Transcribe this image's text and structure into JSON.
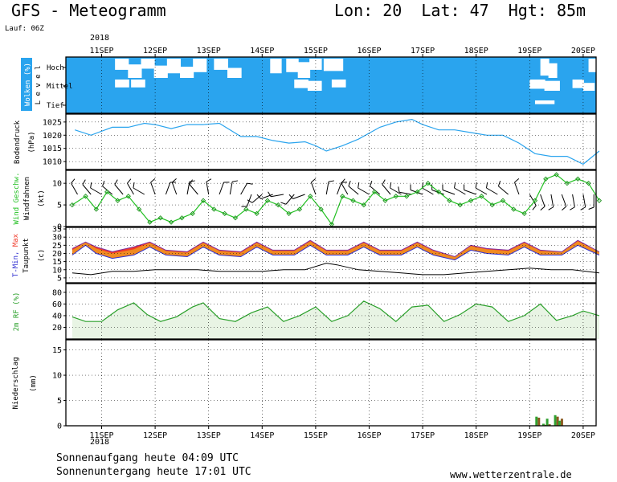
{
  "header": {
    "title": "GFS - Meteogramm",
    "location": "Lon: 20  Lat: 47  Hgt: 85m",
    "run": "Lauf: 06Z"
  },
  "footer": {
    "sunrise": "Sonnenaufgang heute 04:09 UTC",
    "sunset": "Sonnenuntergang heute 17:01 UTC",
    "site": "www.wetterzentrale.de"
  },
  "year_label": "2018",
  "x_ticks": [
    "11SEP",
    "12SEP",
    "13SEP",
    "14SEP",
    "15SEP",
    "16SEP",
    "17SEP",
    "18SEP",
    "19SEP",
    "20SEP"
  ],
  "colors": {
    "cloud_sky": "#2aa4ee",
    "cloud": "#ffffff",
    "pressure": "#2aa4ee",
    "wind": "#22c022",
    "wind_marker": "#1a901a",
    "barb": "#000000",
    "tmax_fill": "#f03a2a",
    "tmin_fill": "#f08a20",
    "tmin_line": "#3030d0",
    "dew": "#000000",
    "rh_line": "#2aa02a",
    "rh_fill": "#e8f4e4",
    "precip_green": "#30a030",
    "precip_brown": "#8a5a20",
    "grid": "#000000"
  },
  "panels": {
    "clouds": {
      "label": "Wolken (%)",
      "level_label": "L e v e l",
      "levels": [
        "Hoch",
        "Mittel",
        "Tief"
      ]
    },
    "pressure": {
      "label": "Bodendruck",
      "unit": "(hPa)",
      "ticks": [
        1025,
        1020,
        1015,
        1010
      ]
    },
    "wind": {
      "label": "Wind Geschw.",
      "label2": "Windfahnen",
      "unit": "(kt)",
      "ticks": [
        10,
        5,
        0
      ]
    },
    "temp": {
      "label_a": "T-Min,",
      "label_b": "Max",
      "label2": "Taupunkt",
      "unit": "(c)",
      "ticks": [
        35,
        30,
        25,
        20,
        15,
        10,
        5
      ]
    },
    "rh": {
      "label": "2m RF (%)",
      "ticks": [
        80,
        60,
        40,
        20
      ]
    },
    "precip": {
      "label": "Niederschlag",
      "unit": "(mm)",
      "ticks": [
        15,
        10,
        5,
        0
      ]
    }
  },
  "chart_data": {
    "type": "line",
    "x_unit": "days from 11SEP 00Z",
    "pressure": {
      "x": [
        -0.5,
        -0.2,
        0.2,
        0.5,
        0.8,
        1.0,
        1.3,
        1.6,
        1.9,
        2.2,
        2.6,
        2.9,
        3.2,
        3.5,
        3.8,
        4.0,
        4.2,
        4.5,
        4.8,
        5.2,
        5.5,
        5.8,
        6.0,
        6.3,
        6.6,
        6.9,
        7.2,
        7.5,
        7.8,
        8.1,
        8.4,
        8.7,
        9.0,
        9.3
      ],
      "y": [
        1022,
        1020,
        1023,
        1023,
        1024.5,
        1024,
        1022.5,
        1024,
        1024,
        1024.5,
        1019.5,
        1019.5,
        1018,
        1017,
        1017.5,
        1016,
        1014,
        1016,
        1018.5,
        1023,
        1025,
        1026,
        1024,
        1022,
        1022,
        1021,
        1020,
        1020,
        1017,
        1013,
        1012,
        1012,
        1009,
        1014
      ]
    },
    "wind_speed": {
      "x": [
        -0.55,
        -0.3,
        -0.1,
        0.1,
        0.3,
        0.5,
        0.7,
        0.9,
        1.1,
        1.3,
        1.5,
        1.7,
        1.9,
        2.1,
        2.3,
        2.5,
        2.7,
        2.9,
        3.1,
        3.3,
        3.5,
        3.7,
        3.9,
        4.1,
        4.3,
        4.5,
        4.7,
        4.9,
        5.1,
        5.3,
        5.5,
        5.7,
        5.9,
        6.1,
        6.3,
        6.5,
        6.7,
        6.9,
        7.1,
        7.3,
        7.5,
        7.7,
        7.9,
        8.1,
        8.3,
        8.5,
        8.7,
        8.9,
        9.1,
        9.3
      ],
      "y": [
        5,
        7,
        4,
        8,
        6,
        7,
        4,
        1,
        2,
        1,
        2,
        3,
        6,
        4,
        3,
        2,
        4,
        3,
        6,
        5,
        3,
        4,
        7,
        4,
        0.5,
        7,
        6,
        5,
        8,
        6,
        7,
        7,
        8,
        10,
        8,
        6,
        5,
        6,
        7,
        5,
        6,
        4,
        3,
        6,
        11,
        12,
        10,
        11,
        10,
        6
      ]
    },
    "t_max": {
      "x": [
        -0.55,
        -0.3,
        -0.1,
        0.2,
        0.6,
        0.9,
        1.2,
        1.6,
        1.9,
        2.2,
        2.6,
        2.9,
        3.2,
        3.6,
        3.9,
        4.2,
        4.6,
        4.9,
        5.2,
        5.6,
        5.9,
        6.2,
        6.6,
        6.9,
        7.2,
        7.6,
        7.9,
        8.2,
        8.6,
        8.9,
        9.3
      ],
      "y": [
        23,
        27,
        24,
        21,
        24,
        27,
        22,
        21,
        27,
        22,
        21,
        27,
        22,
        22,
        28,
        22,
        22,
        27,
        22,
        22,
        27,
        22,
        18,
        25,
        23,
        22,
        27,
        22,
        21,
        28,
        21
      ]
    },
    "t_min": {
      "x": [
        -0.55,
        -0.3,
        -0.1,
        0.2,
        0.6,
        0.9,
        1.2,
        1.6,
        1.9,
        2.2,
        2.6,
        2.9,
        3.2,
        3.6,
        3.9,
        4.2,
        4.6,
        4.9,
        5.2,
        5.6,
        5.9,
        6.2,
        6.6,
        6.9,
        7.2,
        7.6,
        7.9,
        8.2,
        8.6,
        8.9,
        9.3
      ],
      "y": [
        19,
        25,
        20,
        17,
        19,
        24,
        19,
        18,
        24,
        19,
        18,
        24,
        19,
        19,
        25,
        19,
        19,
        24,
        19,
        19,
        24,
        19,
        16,
        22,
        20,
        19,
        24,
        19,
        19,
        25,
        19
      ]
    },
    "dewpoint": {
      "x": [
        -0.55,
        -0.2,
        0.2,
        0.6,
        1.0,
        1.4,
        1.8,
        2.2,
        2.6,
        3.0,
        3.4,
        3.8,
        4.2,
        4.4,
        4.8,
        5.2,
        5.6,
        6.0,
        6.4,
        6.8,
        7.2,
        7.6,
        8.0,
        8.4,
        8.8,
        9.3
      ],
      "y": [
        8,
        7,
        9,
        9,
        10,
        10,
        10,
        9,
        9,
        9,
        10,
        10,
        14,
        13,
        10,
        9,
        8,
        7,
        7,
        8,
        9,
        10,
        11,
        10,
        10,
        8
      ]
    },
    "rh": {
      "x": [
        -0.55,
        -0.3,
        0.0,
        0.3,
        0.6,
        0.85,
        1.1,
        1.4,
        1.7,
        1.9,
        2.2,
        2.5,
        2.8,
        3.1,
        3.4,
        3.7,
        4.0,
        4.3,
        4.6,
        4.9,
        5.2,
        5.5,
        5.8,
        6.1,
        6.4,
        6.7,
        7.0,
        7.3,
        7.6,
        7.9,
        8.2,
        8.5,
        8.8,
        9.0,
        9.3
      ],
      "y": [
        38,
        30,
        30,
        50,
        62,
        42,
        30,
        38,
        55,
        62,
        35,
        30,
        45,
        55,
        30,
        40,
        55,
        30,
        40,
        65,
        52,
        30,
        55,
        58,
        30,
        42,
        60,
        55,
        30,
        40,
        60,
        32,
        40,
        48,
        40
      ]
    },
    "precip": {
      "x": [
        8.15,
        8.28,
        8.35,
        8.5,
        8.58
      ],
      "green": [
        1.8,
        0.4,
        1.4,
        2.1,
        1.0
      ],
      "brown": [
        1.6,
        0.2,
        0.3,
        1.8,
        1.4
      ]
    },
    "wind_barbs": [
      {
        "x": -0.45,
        "dir": 330,
        "kt": 10
      },
      {
        "x": -0.2,
        "dir": 320,
        "kt": 10
      },
      {
        "x": 0.0,
        "dir": 300,
        "kt": 8
      },
      {
        "x": 0.2,
        "dir": 310,
        "kt": 10
      },
      {
        "x": 0.4,
        "dir": 320,
        "kt": 10
      },
      {
        "x": 0.6,
        "dir": 330,
        "kt": 10
      },
      {
        "x": 0.8,
        "dir": 300,
        "kt": 10
      },
      {
        "x": 1.0,
        "dir": 340,
        "kt": 5
      },
      {
        "x": 1.2,
        "dir": 20,
        "kt": 5
      },
      {
        "x": 1.4,
        "dir": 340,
        "kt": 5
      },
      {
        "x": 1.6,
        "dir": 10,
        "kt": 5
      },
      {
        "x": 1.8,
        "dir": 320,
        "kt": 10
      },
      {
        "x": 2.0,
        "dir": 350,
        "kt": 5
      },
      {
        "x": 2.2,
        "dir": 20,
        "kt": 5
      },
      {
        "x": 2.4,
        "dir": 10,
        "kt": 5
      },
      {
        "x": 2.6,
        "dir": 30,
        "kt": 5
      },
      {
        "x": 2.8,
        "dir": 200,
        "kt": 5
      },
      {
        "x": 3.0,
        "dir": 230,
        "kt": 10
      },
      {
        "x": 3.2,
        "dir": 250,
        "kt": 10
      },
      {
        "x": 3.4,
        "dir": 260,
        "kt": 5
      },
      {
        "x": 3.6,
        "dir": 220,
        "kt": 10
      },
      {
        "x": 3.8,
        "dir": 250,
        "kt": 10
      },
      {
        "x": 4.0,
        "dir": 340,
        "kt": 5
      },
      {
        "x": 4.2,
        "dir": 10,
        "kt": 5
      },
      {
        "x": 4.4,
        "dir": 20,
        "kt": 5
      },
      {
        "x": 4.6,
        "dir": 330,
        "kt": 10
      },
      {
        "x": 4.8,
        "dir": 310,
        "kt": 10
      },
      {
        "x": 5.0,
        "dir": 300,
        "kt": 10
      },
      {
        "x": 5.2,
        "dir": 310,
        "kt": 10
      },
      {
        "x": 5.4,
        "dir": 320,
        "kt": 10
      },
      {
        "x": 5.6,
        "dir": 300,
        "kt": 10
      },
      {
        "x": 5.8,
        "dir": 280,
        "kt": 10
      },
      {
        "x": 6.0,
        "dir": 290,
        "kt": 10
      },
      {
        "x": 6.2,
        "dir": 300,
        "kt": 10
      },
      {
        "x": 6.4,
        "dir": 290,
        "kt": 10
      },
      {
        "x": 6.6,
        "dir": 290,
        "kt": 10
      },
      {
        "x": 6.8,
        "dir": 300,
        "kt": 10
      },
      {
        "x": 7.0,
        "dir": 290,
        "kt": 10
      },
      {
        "x": 7.2,
        "dir": 300,
        "kt": 10
      },
      {
        "x": 7.4,
        "dir": 300,
        "kt": 10
      },
      {
        "x": 7.6,
        "dir": 310,
        "kt": 10
      },
      {
        "x": 7.8,
        "dir": 340,
        "kt": 5
      },
      {
        "x": 8.0,
        "dir": 150,
        "kt": 10
      },
      {
        "x": 8.2,
        "dir": 160,
        "kt": 10
      },
      {
        "x": 8.4,
        "dir": 170,
        "kt": 10
      },
      {
        "x": 8.6,
        "dir": 160,
        "kt": 10
      },
      {
        "x": 8.8,
        "dir": 170,
        "kt": 10
      },
      {
        "x": 9.0,
        "dir": 170,
        "kt": 10
      },
      {
        "x": 9.2,
        "dir": 180,
        "kt": 10
      }
    ],
    "clouds": [
      {
        "level": "high",
        "x0": 0.25,
        "x1": 1.95,
        "cover": [
          0.3,
          0.5,
          0.2,
          0.4,
          0.6,
          0.3,
          0.5
        ]
      },
      {
        "level": "high",
        "x0": 2.1,
        "x1": 2.6,
        "cover": [
          0.3,
          0.2
        ]
      },
      {
        "level": "high",
        "x0": 3.15,
        "x1": 3.35,
        "cover": [
          0.6
        ]
      },
      {
        "level": "high",
        "x0": 3.45,
        "x1": 4.1,
        "cover": [
          0.5,
          0.7,
          0.3
        ]
      },
      {
        "level": "high",
        "x0": 4.15,
        "x1": 4.5,
        "cover": [
          0.4
        ]
      },
      {
        "level": "high",
        "x0": 8.2,
        "x1": 8.5,
        "cover": [
          0.8,
          0.6
        ]
      },
      {
        "level": "high",
        "x0": 9.1,
        "x1": 9.3,
        "cover": [
          0.5
        ]
      },
      {
        "level": "mid",
        "x0": 0.25,
        "x1": 0.5,
        "cover": [
          0.5
        ]
      },
      {
        "level": "mid",
        "x0": 0.55,
        "x1": 0.8,
        "cover": [
          0.5
        ]
      },
      {
        "level": "mid",
        "x0": 3.6,
        "x1": 4.1,
        "cover": [
          0.6,
          0.8
        ]
      },
      {
        "level": "mid",
        "x0": 4.3,
        "x1": 4.55,
        "cover": [
          0.5
        ]
      },
      {
        "level": "mid",
        "x0": 8.0,
        "x1": 8.55,
        "cover": [
          0.7,
          0.8
        ]
      },
      {
        "level": "mid",
        "x0": 8.8,
        "x1": 9.2,
        "cover": [
          0.6,
          0.5
        ]
      },
      {
        "level": "low",
        "x0": 8.1,
        "x1": 8.45,
        "cover": [
          0.3
        ]
      }
    ]
  }
}
